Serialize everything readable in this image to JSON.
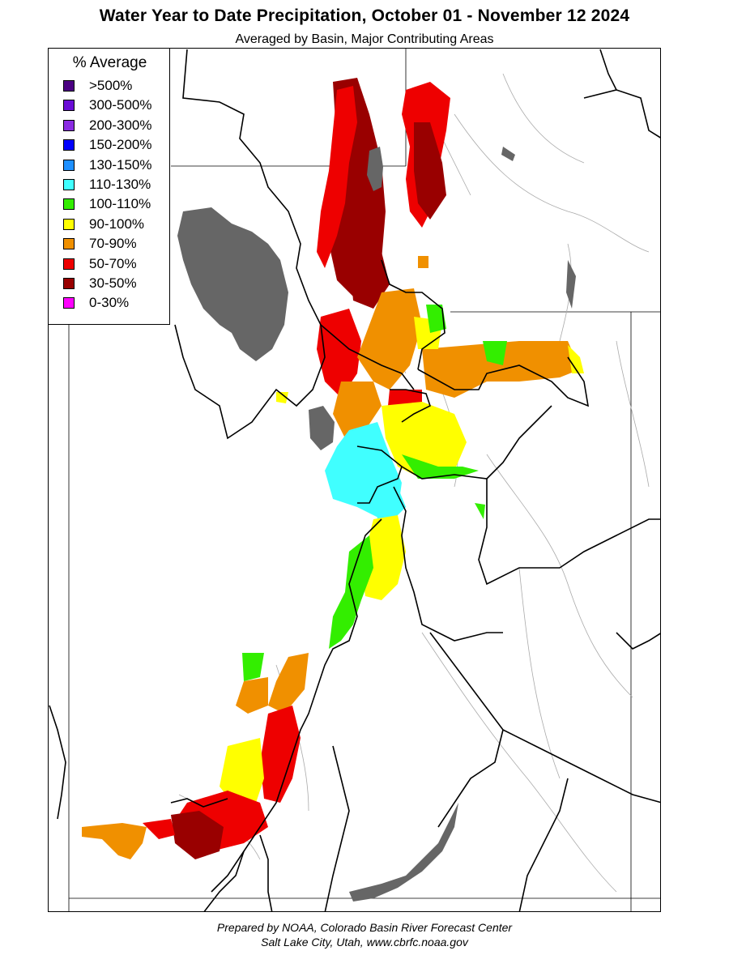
{
  "title": "Water Year to Date Precipitation, October 01  - November 12 2024",
  "subtitle": "Averaged by Basin, Major Contributing Areas",
  "legend": {
    "title": "% Average",
    "items": [
      {
        "label": ">500%",
        "color": "#4b0082"
      },
      {
        "label": "300-500%",
        "color": "#6a0dd6"
      },
      {
        "label": "200-300%",
        "color": "#8a2be2"
      },
      {
        "label": "150-200%",
        "color": "#0000ff"
      },
      {
        "label": "130-150%",
        "color": "#1e90ff"
      },
      {
        "label": "110-130%",
        "color": "#40ffff"
      },
      {
        "label": "100-110%",
        "color": "#33ee00"
      },
      {
        "label": "90-100%",
        "color": "#ffff00"
      },
      {
        "label": "70-90%",
        "color": "#f09000"
      },
      {
        "label": "50-70%",
        "color": "#ee0000"
      },
      {
        "label": "30-50%",
        "color": "#990000"
      },
      {
        "label": "0-30%",
        "color": "#ff00ff"
      }
    ]
  },
  "colors": {
    "lake": "#666666",
    "border": "#000000",
    "river": "#aaaaaa"
  },
  "footer": {
    "line1": "Prepared by NOAA, Colorado Basin River Forecast Center",
    "line2": "Salt Lake City, Utah, www.cbrfc.noaa.gov"
  }
}
